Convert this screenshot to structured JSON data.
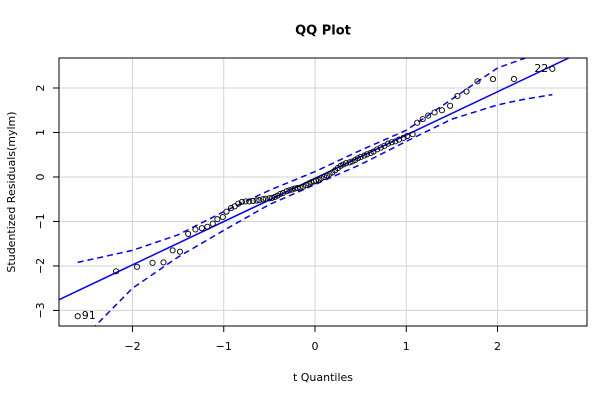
{
  "chart_data": {
    "type": "qq",
    "title": "QQ Plot",
    "x_label": "t Quantiles",
    "y_label": "Studentized Residuals(mylm)",
    "xlim": [
      -2.805,
      2.98
    ],
    "ylim": [
      -3.35,
      2.674
    ],
    "xticks": [
      {
        "value": -2,
        "label": "−2"
      },
      {
        "value": -1,
        "label": "−1"
      },
      0,
      1,
      2
    ],
    "yticks": [
      {
        "value": -3,
        "label": "−3"
      },
      {
        "value": -2,
        "label": "−2"
      },
      {
        "value": -1,
        "label": "−1"
      },
      0,
      1,
      2
    ],
    "grid": true,
    "point_color": "#000000",
    "x": [
      -2.6,
      -2.18,
      -1.95,
      -1.78,
      -1.66,
      -1.56,
      -1.48,
      -1.39,
      -1.31,
      -1.24,
      -1.18,
      -1.12,
      -1.07,
      -1.01,
      -0.97,
      -0.92,
      -0.88,
      -0.84,
      -0.8,
      -0.76,
      -0.72,
      -0.68,
      -0.64,
      -0.61,
      -0.57,
      -0.54,
      -0.5,
      -0.47,
      -0.44,
      -0.41,
      -0.38,
      -0.35,
      -0.31,
      -0.28,
      -0.25,
      -0.22,
      -0.19,
      -0.16,
      -0.13,
      -0.1,
      -0.07,
      -0.04,
      -0.01,
      0.01,
      0.04,
      0.07,
      0.1,
      0.13,
      0.16,
      0.19,
      0.22,
      0.25,
      0.28,
      0.31,
      0.34,
      0.38,
      0.41,
      0.44,
      0.47,
      0.5,
      0.54,
      0.57,
      0.61,
      0.64,
      0.68,
      0.72,
      0.76,
      0.8,
      0.84,
      0.88,
      0.92,
      0.97,
      1.01,
      1.07,
      1.12,
      1.18,
      1.24,
      1.31,
      1.39,
      1.48,
      1.56,
      1.66,
      1.78,
      1.95,
      2.18,
      2.6
    ],
    "values": [
      -3.13,
      -2.12,
      -2.02,
      -1.93,
      -1.92,
      -1.65,
      -1.68,
      -1.28,
      -1.18,
      -1.15,
      -1.12,
      -1.05,
      -0.95,
      -0.9,
      -0.78,
      -0.7,
      -0.66,
      -0.6,
      -0.56,
      -0.55,
      -0.55,
      -0.54,
      -0.53,
      -0.52,
      -0.5,
      -0.49,
      -0.48,
      -0.47,
      -0.45,
      -0.42,
      -0.38,
      -0.36,
      -0.32,
      -0.3,
      -0.28,
      -0.26,
      -0.25,
      -0.24,
      -0.22,
      -0.18,
      -0.15,
      -0.12,
      -0.1,
      -0.08,
      -0.06,
      -0.03,
      0,
      0.03,
      0.07,
      0.1,
      0.15,
      0.2,
      0.25,
      0.28,
      0.31,
      0.33,
      0.35,
      0.38,
      0.42,
      0.45,
      0.48,
      0.51,
      0.54,
      0.57,
      0.62,
      0.66,
      0.7,
      0.75,
      0.78,
      0.8,
      0.84,
      0.88,
      0.92,
      0.96,
      1.22,
      1.3,
      1.38,
      1.45,
      1.5,
      1.6,
      1.82,
      1.92,
      2.15,
      2.2,
      2.2,
      2.43
    ],
    "point_labels": [
      "91",
      null,
      null,
      null,
      null,
      null,
      null,
      null,
      null,
      null,
      null,
      null,
      null,
      null,
      null,
      null,
      null,
      null,
      null,
      null,
      null,
      null,
      null,
      null,
      null,
      null,
      null,
      null,
      null,
      null,
      null,
      null,
      null,
      null,
      null,
      null,
      null,
      null,
      null,
      null,
      null,
      null,
      null,
      null,
      null,
      null,
      null,
      null,
      null,
      null,
      null,
      null,
      null,
      null,
      null,
      null,
      null,
      null,
      null,
      null,
      null,
      null,
      null,
      null,
      null,
      null,
      null,
      null,
      null,
      null,
      null,
      null,
      null,
      null,
      null,
      null,
      null,
      null,
      null,
      null,
      null,
      null,
      null,
      null,
      null,
      "22"
    ],
    "reference_line": {
      "intercept": -0.03,
      "slope": 0.973,
      "color": "#0000ff"
    },
    "envelope": {
      "color": "#0000ff",
      "x": [
        -2.6,
        -2.0,
        -1.5,
        -1.0,
        -0.5,
        0,
        0.5,
        1.0,
        1.5,
        2.0,
        2.3,
        2.6
      ],
      "upper": [
        -1.92,
        -1.65,
        -1.3,
        -0.78,
        -0.3,
        0.12,
        0.6,
        1.05,
        1.75,
        2.45,
        2.67,
        3.1
      ],
      "lower": [
        -3.75,
        -2.5,
        -1.8,
        -1.2,
        -0.62,
        -0.17,
        0.28,
        0.8,
        1.3,
        1.62,
        1.75,
        1.85
      ]
    }
  }
}
